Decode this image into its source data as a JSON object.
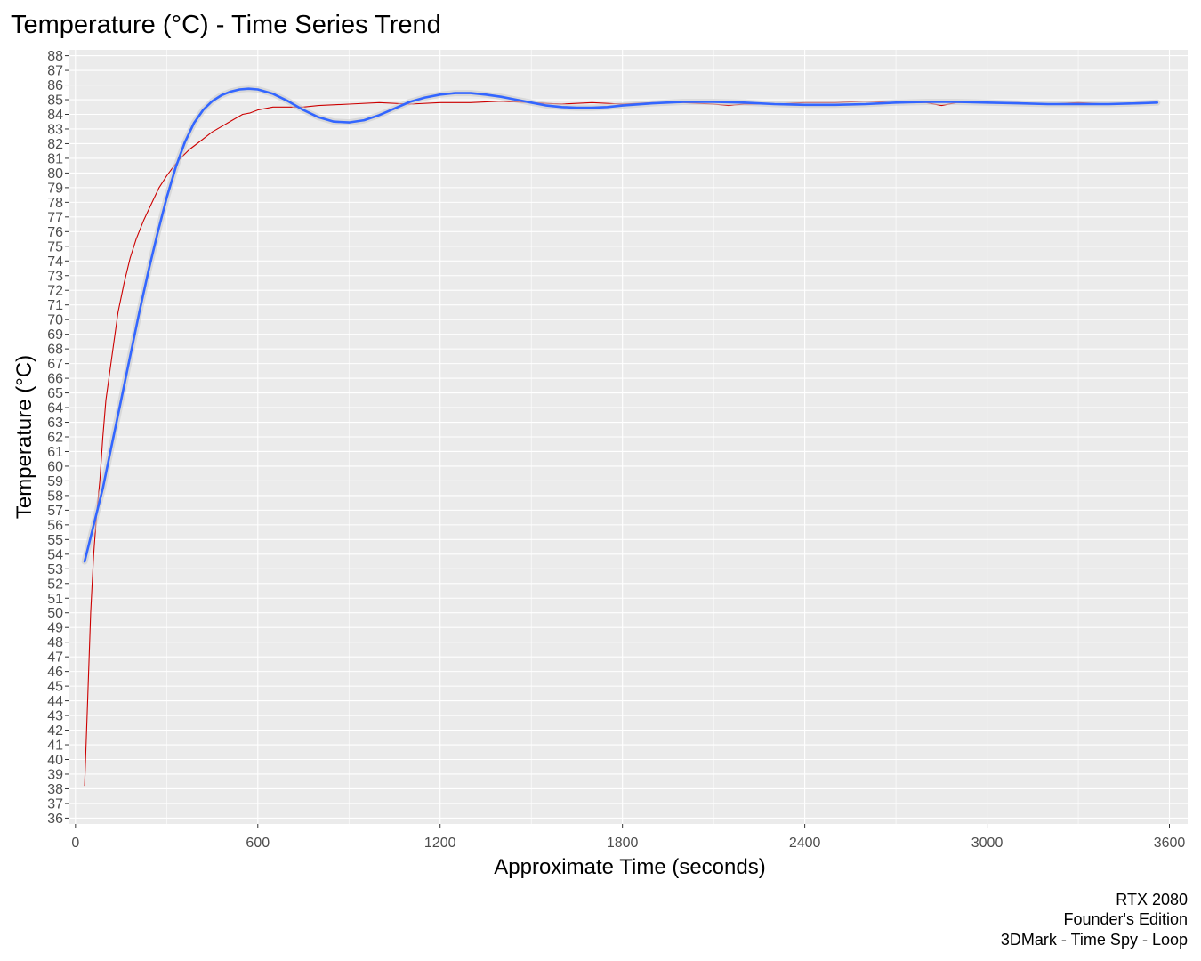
{
  "chart_data": {
    "type": "line",
    "title": "Temperature (°C) - Time Series Trend",
    "xlabel": "Approximate Time (seconds)",
    "ylabel": "Temperature (°C)",
    "xlim": [
      -20,
      3660
    ],
    "ylim": [
      35.6,
      88.4
    ],
    "x_ticks": [
      0,
      600,
      1200,
      1800,
      2400,
      3000,
      3600
    ],
    "y_ticks": [
      36,
      37,
      38,
      39,
      40,
      41,
      42,
      43,
      44,
      45,
      46,
      47,
      48,
      49,
      50,
      51,
      52,
      53,
      54,
      55,
      56,
      57,
      58,
      59,
      60,
      61,
      62,
      63,
      64,
      65,
      66,
      67,
      68,
      69,
      70,
      71,
      72,
      73,
      74,
      75,
      76,
      77,
      78,
      79,
      80,
      81,
      82,
      83,
      84,
      85,
      86,
      87,
      88
    ],
    "grid": true,
    "legend": "none",
    "colors": {
      "background": "#ebebeb",
      "grid": "#ffffff",
      "raw_line": "#cc0000",
      "trend_line": "#3366ff",
      "confidence_band": "#cccccc"
    },
    "series": [
      {
        "style": "raw",
        "x": [
          30,
          40,
          50,
          60,
          70,
          80,
          90,
          100,
          120,
          140,
          160,
          180,
          200,
          225,
          250,
          275,
          300,
          325,
          350,
          375,
          400,
          450,
          500,
          525,
          550,
          575,
          600,
          650,
          700,
          750,
          800,
          900,
          1000,
          1100,
          1200,
          1300,
          1400,
          1500,
          1600,
          1700,
          1800,
          1900,
          2000,
          2100,
          2150,
          2200,
          2300,
          2400,
          2500,
          2600,
          2700,
          2800,
          2850,
          2900,
          3000,
          3100,
          3200,
          3300,
          3400,
          3500,
          3560
        ],
        "y": [
          38.2,
          44.0,
          50.0,
          54.0,
          56.8,
          59.0,
          62.0,
          64.5,
          67.5,
          70.5,
          72.5,
          74.2,
          75.5,
          76.8,
          77.9,
          79.0,
          79.8,
          80.5,
          81.1,
          81.6,
          82.0,
          82.8,
          83.4,
          83.7,
          84.0,
          84.1,
          84.3,
          84.5,
          84.5,
          84.5,
          84.6,
          84.7,
          84.8,
          84.7,
          84.8,
          84.8,
          84.9,
          84.8,
          84.7,
          84.8,
          84.7,
          84.8,
          84.8,
          84.7,
          84.6,
          84.7,
          84.7,
          84.8,
          84.8,
          84.9,
          84.8,
          84.8,
          84.6,
          84.8,
          84.8,
          84.8,
          84.7,
          84.8,
          84.7,
          84.8,
          84.8
        ]
      },
      {
        "style": "trend",
        "x": [
          30,
          60,
          90,
          120,
          150,
          180,
          210,
          240,
          270,
          300,
          330,
          360,
          390,
          420,
          450,
          480,
          510,
          540,
          570,
          600,
          650,
          700,
          750,
          800,
          850,
          900,
          950,
          1000,
          1050,
          1100,
          1150,
          1200,
          1250,
          1300,
          1350,
          1400,
          1450,
          1500,
          1550,
          1600,
          1650,
          1700,
          1750,
          1800,
          1900,
          2000,
          2100,
          2200,
          2300,
          2400,
          2500,
          2600,
          2700,
          2800,
          2900,
          3000,
          3100,
          3200,
          3300,
          3400,
          3500,
          3560
        ],
        "y": [
          53.5,
          56.0,
          58.5,
          61.5,
          64.5,
          67.5,
          70.5,
          73.3,
          75.9,
          78.3,
          80.4,
          82.1,
          83.4,
          84.3,
          84.9,
          85.3,
          85.55,
          85.7,
          85.75,
          85.7,
          85.4,
          84.9,
          84.3,
          83.8,
          83.5,
          83.45,
          83.6,
          83.95,
          84.4,
          84.85,
          85.15,
          85.35,
          85.45,
          85.45,
          85.35,
          85.2,
          85.0,
          84.8,
          84.6,
          84.5,
          84.45,
          84.45,
          84.5,
          84.6,
          84.75,
          84.85,
          84.85,
          84.8,
          84.7,
          84.65,
          84.65,
          84.7,
          84.8,
          84.85,
          84.85,
          84.8,
          84.75,
          84.7,
          84.7,
          84.7,
          84.75,
          84.8
        ]
      }
    ]
  },
  "caption": {
    "line1": "RTX 2080",
    "line2": "Founder's Edition",
    "line3": "3DMark - Time Spy - Loop"
  }
}
